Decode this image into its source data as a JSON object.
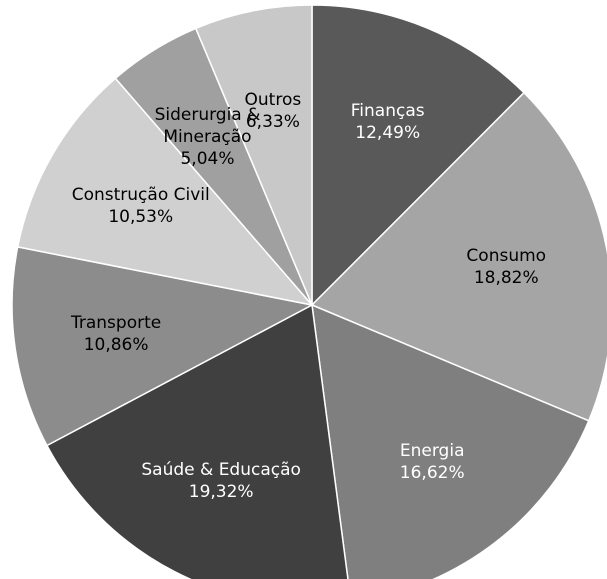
{
  "chart_data": {
    "type": "pie",
    "categories": [
      "Finanças",
      "Consumo",
      "Energia",
      "Saúde & Educação",
      "Transporte",
      "Construção Civil",
      "Siderurgia & Mineração",
      "Outros"
    ],
    "values": [
      12.49,
      18.82,
      16.62,
      19.32,
      10.86,
      10.53,
      5.04,
      6.33
    ],
    "value_labels": [
      "12,49%",
      "18,82%",
      "16,62%",
      "19,32%",
      "10,86%",
      "10,53%",
      "5,04%",
      "6,33%"
    ],
    "colors": [
      "#595959",
      "#a5a5a5",
      "#7f7f7f",
      "#404040",
      "#8c8c8c",
      "#d0d0d0",
      "#a0a0a0",
      "#c8c8c8"
    ]
  }
}
